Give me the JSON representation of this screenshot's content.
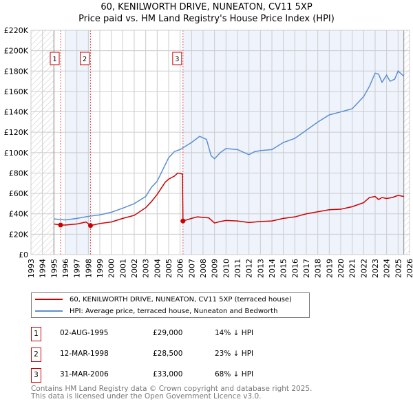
{
  "title": {
    "line1": "60, KENILWORTH DRIVE, NUNEATON, CV11 5XP",
    "line2": "Price paid vs. HM Land Registry's House Price Index (HPI)"
  },
  "chart_data": {
    "type": "line",
    "title": "60, KENILWORTH DRIVE, NUNEATON, CV11 5XP — Price paid vs. HM Land Registry's House Price Index (HPI)",
    "xlim": [
      1993,
      2026
    ],
    "ylim": [
      0,
      220000
    ],
    "x_ticks": [
      "1993",
      "1994",
      "1995",
      "1996",
      "1997",
      "1998",
      "1999",
      "2000",
      "2001",
      "2002",
      "2003",
      "2004",
      "2005",
      "2006",
      "2007",
      "2008",
      "2009",
      "2010",
      "2011",
      "2012",
      "2013",
      "2014",
      "2015",
      "2016",
      "2017",
      "2018",
      "2019",
      "2020",
      "2021",
      "2022",
      "2023",
      "2024",
      "2025",
      "2026"
    ],
    "y_ticks": [
      "£0",
      "£20K",
      "£40K",
      "£60K",
      "£80K",
      "£100K",
      "£120K",
      "£140K",
      "£160K",
      "£180K",
      "£200K",
      "£220K"
    ],
    "grid": true,
    "colors": {
      "price": "#cc0000",
      "hpi": "#5b8fd0",
      "band": "#eef3fc",
      "hatch": "#bbbbbb"
    },
    "series": [
      {
        "name": "60, KENILWORTH DRIVE, NUNEATON, CV11 5XP (terraced house)",
        "color": "#cc0000",
        "points": [
          [
            1995,
            30000
          ],
          [
            1995.6,
            29000
          ],
          [
            1996,
            29000
          ],
          [
            1997,
            30000
          ],
          [
            1997.8,
            32000
          ],
          [
            1998.2,
            28500
          ],
          [
            1999,
            30500
          ],
          [
            2000,
            32000
          ],
          [
            2001,
            35500
          ],
          [
            2002,
            38500
          ],
          [
            2003,
            46000
          ],
          [
            2003.5,
            52000
          ],
          [
            2004,
            59000
          ],
          [
            2004.7,
            71000
          ],
          [
            2005,
            74000
          ],
          [
            2005.5,
            77000
          ],
          [
            2005.8,
            80000
          ],
          [
            2006.2,
            79000
          ],
          [
            2006.25,
            33000
          ],
          [
            2007,
            35500
          ],
          [
            2007.5,
            37000
          ],
          [
            2008.5,
            36000
          ],
          [
            2009,
            31000
          ],
          [
            2009.5,
            32500
          ],
          [
            2010,
            33500
          ],
          [
            2011,
            33000
          ],
          [
            2012,
            31500
          ],
          [
            2013,
            32500
          ],
          [
            2014,
            33000
          ],
          [
            2015,
            35500
          ],
          [
            2016,
            37000
          ],
          [
            2017,
            40000
          ],
          [
            2018,
            42000
          ],
          [
            2019,
            44000
          ],
          [
            2020,
            44500
          ],
          [
            2021,
            47000
          ],
          [
            2022,
            51000
          ],
          [
            2022.5,
            56000
          ],
          [
            2023,
            57000
          ],
          [
            2023.3,
            54000
          ],
          [
            2023.6,
            56000
          ],
          [
            2024,
            55000
          ],
          [
            2024.5,
            56000
          ],
          [
            2025,
            58000
          ],
          [
            2025.5,
            57000
          ]
        ]
      },
      {
        "name": "HPI: Average price, terraced house, Nuneaton and Bedworth",
        "color": "#5b8fd0",
        "points": [
          [
            1995,
            35000
          ],
          [
            1996,
            34000
          ],
          [
            1997,
            35500
          ],
          [
            1998,
            37500
          ],
          [
            1999,
            39000
          ],
          [
            2000,
            41500
          ],
          [
            2001,
            45500
          ],
          [
            2002,
            50000
          ],
          [
            2003,
            57000
          ],
          [
            2003.5,
            66000
          ],
          [
            2004,
            72000
          ],
          [
            2005,
            95000
          ],
          [
            2005.5,
            101000
          ],
          [
            2006,
            103000
          ],
          [
            2007,
            110000
          ],
          [
            2007.7,
            116000
          ],
          [
            2008.3,
            113000
          ],
          [
            2008.7,
            97000
          ],
          [
            2009,
            94000
          ],
          [
            2009.5,
            100000
          ],
          [
            2010,
            104000
          ],
          [
            2011,
            103000
          ],
          [
            2012,
            98000
          ],
          [
            2012.5,
            101000
          ],
          [
            2013,
            102000
          ],
          [
            2014,
            103000
          ],
          [
            2015,
            110000
          ],
          [
            2016,
            114000
          ],
          [
            2017,
            122000
          ],
          [
            2018,
            130000
          ],
          [
            2019,
            137000
          ],
          [
            2020,
            140000
          ],
          [
            2021,
            143000
          ],
          [
            2022,
            155000
          ],
          [
            2022.5,
            165000
          ],
          [
            2023,
            178000
          ],
          [
            2023.3,
            177000
          ],
          [
            2023.6,
            169000
          ],
          [
            2024,
            176000
          ],
          [
            2024.3,
            170000
          ],
          [
            2024.7,
            172000
          ],
          [
            2025,
            180000
          ],
          [
            2025.5,
            175000
          ]
        ]
      }
    ],
    "sales": [
      {
        "label": "1",
        "year": 1995.58,
        "price": 29000
      },
      {
        "label": "2",
        "year": 1998.19,
        "price": 28500
      },
      {
        "label": "3",
        "year": 2006.25,
        "price": 33000
      }
    ],
    "hatched_ranges": [
      [
        1993,
        1995
      ],
      [
        2025.5,
        2026
      ]
    ],
    "shaded_ranges": [
      [
        1996,
        1998.19
      ],
      [
        2006.25,
        2025.5
      ]
    ]
  },
  "legend": {
    "price": "60, KENILWORTH DRIVE, NUNEATON, CV11 5XP (terraced house)",
    "hpi": "HPI: Average price, terraced house, Nuneaton and Bedworth"
  },
  "transactions": [
    {
      "num": "1",
      "date": "02-AUG-1995",
      "price": "£29,000",
      "hpi": "14% ↓ HPI"
    },
    {
      "num": "2",
      "date": "12-MAR-1998",
      "price": "£28,500",
      "hpi": "23% ↓ HPI"
    },
    {
      "num": "3",
      "date": "31-MAR-2006",
      "price": "£33,000",
      "hpi": "68% ↓ HPI"
    }
  ],
  "footer": {
    "line1": "Contains HM Land Registry data © Crown copyright and database right 2025.",
    "line2": "This data is licensed under the Open Government Licence v3.0."
  }
}
